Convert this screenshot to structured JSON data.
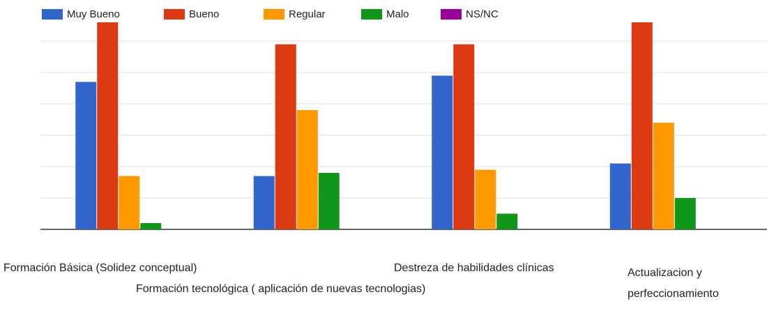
{
  "chart_data": {
    "type": "bar",
    "categories": [
      "Formación Básica (Solidez conceptual)",
      "Formación tecnológica ( aplicación de nuevas tecnologias)",
      "Destreza de habilidades clínicas",
      "Actualizacion y perfeccionamiento"
    ],
    "series": [
      {
        "name": "Muy Bueno",
        "color": "#3366cc",
        "values": [
          4.7,
          1.7,
          4.9,
          2.1
        ]
      },
      {
        "name": "Bueno",
        "color": "#dc3912",
        "values": [
          6.6,
          5.9,
          5.9,
          6.6
        ]
      },
      {
        "name": "Regular",
        "color": "#ff9900",
        "values": [
          1.7,
          3.8,
          1.9,
          3.4
        ]
      },
      {
        "name": "Malo",
        "color": "#109618",
        "values": [
          0.2,
          1.8,
          0.5,
          1.0
        ]
      },
      {
        "name": "NS/NC",
        "color": "#990099",
        "values": [
          0,
          0,
          0,
          0
        ]
      }
    ],
    "ylim": [
      0,
      7
    ],
    "yticks": [
      0,
      1,
      2,
      3,
      4,
      5,
      6
    ],
    "grid": true,
    "legend": "top"
  }
}
